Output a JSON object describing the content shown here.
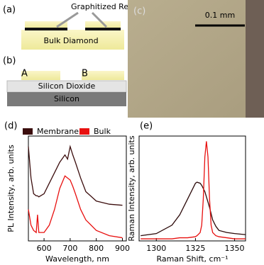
{
  "panels": {
    "a": {
      "label": "(a)",
      "region": "Graphitized Region",
      "bulk": "Bulk Diamond"
    },
    "b": {
      "label": "(b)",
      "a": "A",
      "b": "B",
      "oxide": "Silicon Dioxide",
      "silicon": "Silicon"
    },
    "c": {
      "label": "(c)",
      "scale": "0.1 mm"
    }
  },
  "chart_data": [
    {
      "type": "line",
      "title": "(d)",
      "y_label": "PL Intensity, arb. units",
      "x_label": "Wavelength, nm",
      "x": [
        540,
        550,
        560,
        570,
        575,
        580,
        600,
        620,
        640,
        660,
        680,
        690,
        700,
        710,
        720,
        740,
        760,
        800,
        850,
        900
      ],
      "series": [
        {
          "name": "Membrane",
          "color": "#3b0d0d",
          "values": [
            0.9,
            0.6,
            0.45,
            0.43,
            0.43,
            0.42,
            0.45,
            0.55,
            0.65,
            0.75,
            0.82,
            0.78,
            0.9,
            0.82,
            0.75,
            0.6,
            0.47,
            0.38,
            0.35,
            0.34
          ]
        },
        {
          "name": "Bulk",
          "color": "#e8100f",
          "values": [
            0.3,
            0.15,
            0.1,
            0.08,
            0.25,
            0.08,
            0.08,
            0.15,
            0.3,
            0.5,
            0.62,
            0.6,
            0.58,
            0.52,
            0.45,
            0.3,
            0.2,
            0.1,
            0.05,
            0.03
          ]
        }
      ],
      "xlim": [
        540,
        915
      ],
      "xticks": [
        600,
        700,
        800,
        900
      ],
      "ylim": [
        0,
        1
      ],
      "legend": "top"
    },
    {
      "type": "line",
      "title": "(e)",
      "y_label": "Raman Intensity, arb. units",
      "x_label": "Raman Shift, cm⁻¹",
      "x": [
        1290,
        1300,
        1310,
        1315,
        1320,
        1325,
        1326,
        1328,
        1329,
        1330,
        1331,
        1332,
        1333,
        1334,
        1335,
        1336,
        1338,
        1340,
        1345,
        1350,
        1357
      ],
      "series": [
        {
          "color": "#2a0808",
          "values": [
            0.05,
            0.07,
            0.15,
            0.25,
            0.4,
            0.55,
            0.56,
            0.55,
            0.53,
            0.5,
            0.47,
            0.42,
            0.37,
            0.32,
            0.26,
            0.2,
            0.14,
            0.1,
            0.08,
            0.07,
            0.06
          ]
        },
        {
          "color": "#e8100f",
          "values": [
            0.02,
            0.02,
            0.02,
            0.03,
            0.03,
            0.04,
            0.05,
            0.08,
            0.15,
            0.4,
            0.8,
            0.95,
            0.8,
            0.4,
            0.15,
            0.08,
            0.05,
            0.04,
            0.03,
            0.02,
            0.02
          ]
        }
      ],
      "xlim": [
        1289,
        1357
      ],
      "xticks": [
        1300,
        1325,
        1350
      ],
      "ylim": [
        0,
        1
      ]
    }
  ]
}
